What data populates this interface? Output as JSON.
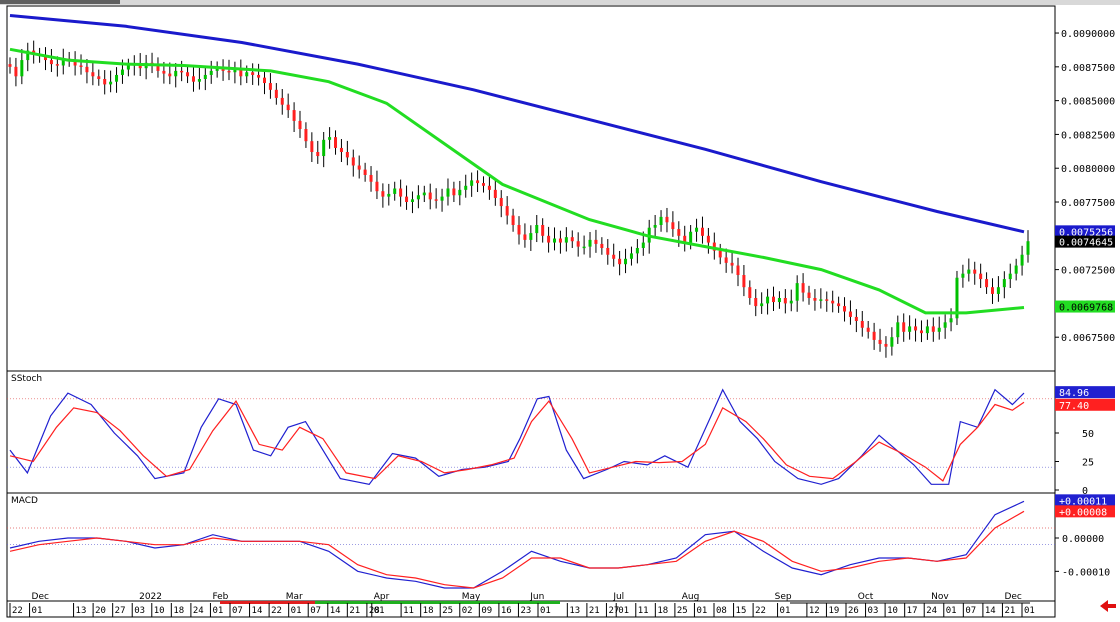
{
  "chart_data": {
    "type": "candlestick",
    "price": {
      "ylim": [
        0.0065,
        0.0092
      ],
      "ticks": [
        "0.0090000",
        "0.0087500",
        "0.0085000",
        "0.0082500",
        "0.0080000",
        "0.0077500",
        "0.0075000",
        "0.0072500",
        "0.0070000",
        "0.0067500"
      ],
      "tick_values": [
        0.009,
        0.00875,
        0.0085,
        0.00825,
        0.008,
        0.00775,
        0.0075,
        0.00725,
        0.007,
        0.00675
      ],
      "last_price_label": "0.0074645",
      "last_price": 0.0074645,
      "ma_slow_label": "0.0075256",
      "ma_slow_last": 0.0075256,
      "ma_fast_label": "0.0069768",
      "ma_fast_last": 0.0069768,
      "colors": {
        "up": "#00c000",
        "down": "#ff2020",
        "wick": "#000000",
        "ma_slow": "#1a1acc",
        "ma_fast": "#22dd22"
      },
      "ma_slow_points": [
        [
          0,
          0.00913
        ],
        [
          20,
          0.00905
        ],
        [
          40,
          0.00893
        ],
        [
          60,
          0.00877
        ],
        [
          80,
          0.00858
        ],
        [
          100,
          0.00836
        ],
        [
          120,
          0.00814
        ],
        [
          140,
          0.0079
        ],
        [
          160,
          0.00768
        ],
        [
          175,
          0.00753
        ]
      ],
      "ma_fast_points": [
        [
          0,
          0.00888
        ],
        [
          10,
          0.0088
        ],
        [
          20,
          0.00877
        ],
        [
          30,
          0.00876
        ],
        [
          45,
          0.00872
        ],
        [
          55,
          0.00864
        ],
        [
          65,
          0.00848
        ],
        [
          75,
          0.00818
        ],
        [
          85,
          0.00788
        ],
        [
          100,
          0.00762
        ],
        [
          110,
          0.0075
        ],
        [
          120,
          0.00742
        ],
        [
          130,
          0.00734
        ],
        [
          140,
          0.00725
        ],
        [
          150,
          0.0071
        ],
        [
          158,
          0.00693
        ],
        [
          165,
          0.00693
        ],
        [
          175,
          0.00697
        ]
      ],
      "close_series": [
        0.00875,
        0.00868,
        0.0088,
        0.00887,
        0.00884,
        0.00883,
        0.0088,
        0.00877,
        0.00876,
        0.00881,
        0.0088,
        0.00876,
        0.00875,
        0.00871,
        0.00868,
        0.00866,
        0.00862,
        0.00864,
        0.00869,
        0.00873,
        0.00876,
        0.00877,
        0.00874,
        0.00878,
        0.00877,
        0.00872,
        0.0087,
        0.00868,
        0.00872,
        0.00871,
        0.00868,
        0.00864,
        0.00866,
        0.00869,
        0.00872,
        0.00874,
        0.00872,
        0.00871,
        0.00873,
        0.00868,
        0.00871,
        0.00869,
        0.00867,
        0.00863,
        0.00858,
        0.00852,
        0.00847,
        0.00843,
        0.00835,
        0.00829,
        0.0082,
        0.00812,
        0.00809,
        0.00821,
        0.00823,
        0.00815,
        0.00812,
        0.00808,
        0.00802,
        0.00799,
        0.00795,
        0.0079,
        0.00783,
        0.00779,
        0.00781,
        0.00785,
        0.00779,
        0.00775,
        0.00777,
        0.0078,
        0.00782,
        0.00777,
        0.00776,
        0.00779,
        0.00785,
        0.0078,
        0.00784,
        0.00787,
        0.00791,
        0.00789,
        0.00787,
        0.00784,
        0.00778,
        0.00772,
        0.00765,
        0.00758,
        0.00751,
        0.00747,
        0.00752,
        0.00758,
        0.0075,
        0.00745,
        0.00748,
        0.00745,
        0.00749,
        0.00746,
        0.00742,
        0.00742,
        0.00747,
        0.00744,
        0.00741,
        0.00736,
        0.00733,
        0.00729,
        0.00733,
        0.00737,
        0.00741,
        0.00745,
        0.00756,
        0.00758,
        0.00764,
        0.0076,
        0.00755,
        0.0075,
        0.00745,
        0.00753,
        0.00756,
        0.0075,
        0.00745,
        0.00739,
        0.00734,
        0.0073,
        0.00728,
        0.00721,
        0.00712,
        0.00704,
        0.00698,
        0.007,
        0.00705,
        0.00701,
        0.00704,
        0.007,
        0.00702,
        0.00715,
        0.00708,
        0.00704,
        0.00702,
        0.00703,
        0.00702,
        0.007,
        0.00698,
        0.00694,
        0.0069,
        0.00687,
        0.00682,
        0.00679,
        0.00673,
        0.0067,
        0.00668,
        0.00675,
        0.00686,
        0.00679,
        0.00683,
        0.0068,
        0.00678,
        0.00683,
        0.00679,
        0.00682,
        0.00686,
        0.00689,
        0.00719,
        0.00722,
        0.00725,
        0.00722,
        0.00718,
        0.00712,
        0.00707,
        0.00712,
        0.00718,
        0.00722,
        0.00728,
        0.00736,
        0.00746
      ]
    },
    "sstoch": {
      "name": "SStoch",
      "ylim": [
        0,
        100
      ],
      "ticks": [
        "50",
        "25",
        "0"
      ],
      "tick_values": [
        50,
        25,
        0
      ],
      "levels": [
        80,
        20
      ],
      "k_label": "84.96",
      "k_last": 84.96,
      "d_label": "77.40",
      "d_last": 77.4,
      "colors": {
        "k": "#2020d0",
        "d": "#ff2020"
      },
      "k_points": [
        [
          0,
          35
        ],
        [
          3,
          15
        ],
        [
          7,
          65
        ],
        [
          10,
          85
        ],
        [
          14,
          75
        ],
        [
          18,
          50
        ],
        [
          22,
          30
        ],
        [
          25,
          10
        ],
        [
          30,
          15
        ],
        [
          33,
          55
        ],
        [
          36,
          80
        ],
        [
          39,
          75
        ],
        [
          42,
          35
        ],
        [
          45,
          30
        ],
        [
          48,
          55
        ],
        [
          51,
          60
        ],
        [
          54,
          35
        ],
        [
          57,
          10
        ],
        [
          62,
          5
        ],
        [
          66,
          32
        ],
        [
          70,
          28
        ],
        [
          74,
          12
        ],
        [
          78,
          18
        ],
        [
          82,
          20
        ],
        [
          86,
          25
        ],
        [
          88,
          45
        ],
        [
          91,
          80
        ],
        [
          93,
          82
        ],
        [
          96,
          35
        ],
        [
          99,
          10
        ],
        [
          103,
          18
        ],
        [
          106,
          25
        ],
        [
          110,
          22
        ],
        [
          113,
          30
        ],
        [
          117,
          20
        ],
        [
          121,
          65
        ],
        [
          123,
          88
        ],
        [
          126,
          60
        ],
        [
          129,
          45
        ],
        [
          132,
          25
        ],
        [
          136,
          10
        ],
        [
          140,
          5
        ],
        [
          143,
          10
        ],
        [
          147,
          30
        ],
        [
          150,
          48
        ],
        [
          153,
          35
        ],
        [
          156,
          22
        ],
        [
          159,
          5
        ],
        [
          162,
          5
        ],
        [
          164,
          60
        ],
        [
          167,
          55
        ],
        [
          170,
          88
        ],
        [
          173,
          75
        ],
        [
          175,
          85
        ]
      ],
      "d_points": [
        [
          0,
          30
        ],
        [
          4,
          25
        ],
        [
          8,
          55
        ],
        [
          11,
          72
        ],
        [
          15,
          68
        ],
        [
          19,
          52
        ],
        [
          23,
          30
        ],
        [
          27,
          12
        ],
        [
          31,
          18
        ],
        [
          35,
          52
        ],
        [
          39,
          78
        ],
        [
          43,
          40
        ],
        [
          47,
          35
        ],
        [
          50,
          55
        ],
        [
          54,
          45
        ],
        [
          58,
          15
        ],
        [
          63,
          10
        ],
        [
          67,
          30
        ],
        [
          71,
          25
        ],
        [
          75,
          15
        ],
        [
          79,
          18
        ],
        [
          83,
          22
        ],
        [
          87,
          28
        ],
        [
          90,
          60
        ],
        [
          93,
          78
        ],
        [
          97,
          45
        ],
        [
          100,
          15
        ],
        [
          104,
          20
        ],
        [
          108,
          25
        ],
        [
          112,
          24
        ],
        [
          116,
          25
        ],
        [
          120,
          40
        ],
        [
          123,
          72
        ],
        [
          127,
          60
        ],
        [
          130,
          45
        ],
        [
          134,
          22
        ],
        [
          138,
          12
        ],
        [
          142,
          10
        ],
        [
          146,
          25
        ],
        [
          150,
          42
        ],
        [
          154,
          32
        ],
        [
          158,
          20
        ],
        [
          161,
          8
        ],
        [
          164,
          40
        ],
        [
          167,
          55
        ],
        [
          170,
          75
        ],
        [
          173,
          70
        ],
        [
          175,
          77
        ]
      ]
    },
    "macd": {
      "name": "MACD",
      "ylim": [
        -0.00018,
        0.00012
      ],
      "ticks": [
        "0.00000",
        "-0.00010"
      ],
      "tick_values": [
        0,
        -0.0001
      ],
      "levels": [
        3e-05,
        -2e-05
      ],
      "macd_label": "+0.00011",
      "macd_last": 0.00011,
      "signal_label": "+0.00008",
      "signal_last": 8e-05,
      "colors": {
        "macd": "#2020d0",
        "signal": "#ff2020"
      },
      "macd_points": [
        [
          0,
          -3e-05
        ],
        [
          5,
          -1e-05
        ],
        [
          10,
          0
        ],
        [
          15,
          0
        ],
        [
          20,
          -1e-05
        ],
        [
          25,
          -3e-05
        ],
        [
          30,
          -2e-05
        ],
        [
          35,
          1e-05
        ],
        [
          40,
          -1e-05
        ],
        [
          45,
          -1e-05
        ],
        [
          50,
          -1e-05
        ],
        [
          55,
          -4e-05
        ],
        [
          60,
          -0.0001
        ],
        [
          65,
          -0.00012
        ],
        [
          70,
          -0.00013
        ],
        [
          75,
          -0.00015
        ],
        [
          80,
          -0.00015
        ],
        [
          85,
          -0.0001
        ],
        [
          90,
          -4e-05
        ],
        [
          95,
          -7e-05
        ],
        [
          100,
          -9e-05
        ],
        [
          105,
          -9e-05
        ],
        [
          110,
          -8e-05
        ],
        [
          115,
          -6e-05
        ],
        [
          120,
          1e-05
        ],
        [
          125,
          2e-05
        ],
        [
          130,
          -4e-05
        ],
        [
          135,
          -9e-05
        ],
        [
          140,
          -0.00011
        ],
        [
          145,
          -8e-05
        ],
        [
          150,
          -6e-05
        ],
        [
          155,
          -6e-05
        ],
        [
          160,
          -7e-05
        ],
        [
          165,
          -5e-05
        ],
        [
          170,
          7e-05
        ],
        [
          175,
          0.00011
        ]
      ],
      "signal_points": [
        [
          0,
          -4e-05
        ],
        [
          5,
          -2e-05
        ],
        [
          10,
          -1e-05
        ],
        [
          15,
          0
        ],
        [
          20,
          -1e-05
        ],
        [
          25,
          -2e-05
        ],
        [
          30,
          -2e-05
        ],
        [
          35,
          0
        ],
        [
          40,
          -1e-05
        ],
        [
          45,
          -1e-05
        ],
        [
          50,
          -1e-05
        ],
        [
          55,
          -2e-05
        ],
        [
          60,
          -8e-05
        ],
        [
          65,
          -0.00011
        ],
        [
          70,
          -0.00012
        ],
        [
          75,
          -0.00014
        ],
        [
          80,
          -0.00015
        ],
        [
          85,
          -0.00012
        ],
        [
          90,
          -6e-05
        ],
        [
          95,
          -6e-05
        ],
        [
          100,
          -9e-05
        ],
        [
          105,
          -9e-05
        ],
        [
          110,
          -8e-05
        ],
        [
          115,
          -7e-05
        ],
        [
          120,
          -1e-05
        ],
        [
          125,
          2e-05
        ],
        [
          130,
          -1e-05
        ],
        [
          135,
          -7e-05
        ],
        [
          140,
          -0.0001
        ],
        [
          145,
          -9e-05
        ],
        [
          150,
          -7e-05
        ],
        [
          155,
          -6e-05
        ],
        [
          160,
          -7e-05
        ],
        [
          165,
          -6e-05
        ],
        [
          170,
          3e-05
        ],
        [
          175,
          8e-05
        ]
      ]
    },
    "x_axis": {
      "months": [
        {
          "label": "Dec",
          "i": 4
        },
        {
          "label": "2022",
          "i": 26
        },
        {
          "label": "Feb",
          "i": 41
        },
        {
          "label": "Mar",
          "i": 56
        },
        {
          "label": "Apr",
          "i": 74
        },
        {
          "label": "May",
          "i": 92
        },
        {
          "label": "Jun",
          "i": 106
        },
        {
          "label": "Jul",
          "i": 123
        },
        {
          "label": "Aug",
          "i": 137
        },
        {
          "label": "Sep",
          "i": 156
        },
        {
          "label": "Oct",
          "i": 173
        },
        {
          "label": "Nov",
          "i": 188
        },
        {
          "label": "Dec",
          "i": 203
        }
      ],
      "days": [
        {
          "label": "22",
          "i": 0
        },
        {
          "label": "01",
          "i": 4
        },
        {
          "label": "13",
          "i": 13
        },
        {
          "label": "20",
          "i": 17
        },
        {
          "label": "27",
          "i": 21
        },
        {
          "label": "03",
          "i": 25
        },
        {
          "label": "10",
          "i": 29
        },
        {
          "label": "18",
          "i": 33
        },
        {
          "label": "24",
          "i": 37
        },
        {
          "label": "01",
          "i": 41
        },
        {
          "label": "07",
          "i": 45
        },
        {
          "label": "14",
          "i": 49
        },
        {
          "label": "22",
          "i": 53
        },
        {
          "label": "01",
          "i": 57
        },
        {
          "label": "07",
          "i": 61
        },
        {
          "label": "14",
          "i": 65
        },
        {
          "label": "21",
          "i": 69
        },
        {
          "label": "28",
          "i": 73
        },
        {
          "label": "01",
          "i": 74
        },
        {
          "label": "11",
          "i": 80
        },
        {
          "label": "18",
          "i": 84
        },
        {
          "label": "25",
          "i": 88
        },
        {
          "label": "02",
          "i": 92
        },
        {
          "label": "09",
          "i": 96
        },
        {
          "label": "16",
          "i": 100
        },
        {
          "label": "23",
          "i": 104
        },
        {
          "label": "01",
          "i": 108
        },
        {
          "label": "13",
          "i": 114
        },
        {
          "label": "21",
          "i": 118
        },
        {
          "label": "27",
          "i": 122
        },
        {
          "label": "01",
          "i": 124
        },
        {
          "label": "11",
          "i": 128
        },
        {
          "label": "18",
          "i": 132
        },
        {
          "label": "25",
          "i": 136
        },
        {
          "label": "01",
          "i": 140
        },
        {
          "label": "08",
          "i": 144
        },
        {
          "label": "15",
          "i": 148
        },
        {
          "label": "22",
          "i": 152
        },
        {
          "label": "01",
          "i": 157
        },
        {
          "label": "12",
          "i": 163
        },
        {
          "label": "19",
          "i": 167
        },
        {
          "label": "26",
          "i": 171
        },
        {
          "label": "03",
          "i": 175
        },
        {
          "label": "10",
          "i": 179
        },
        {
          "label": "17",
          "i": 183
        },
        {
          "label": "24",
          "i": 187
        },
        {
          "label": "01",
          "i": 191
        },
        {
          "label": "07",
          "i": 195
        },
        {
          "label": "14",
          "i": 199
        },
        {
          "label": "21",
          "i": 203
        },
        {
          "label": "01",
          "i": 207
        }
      ]
    }
  }
}
